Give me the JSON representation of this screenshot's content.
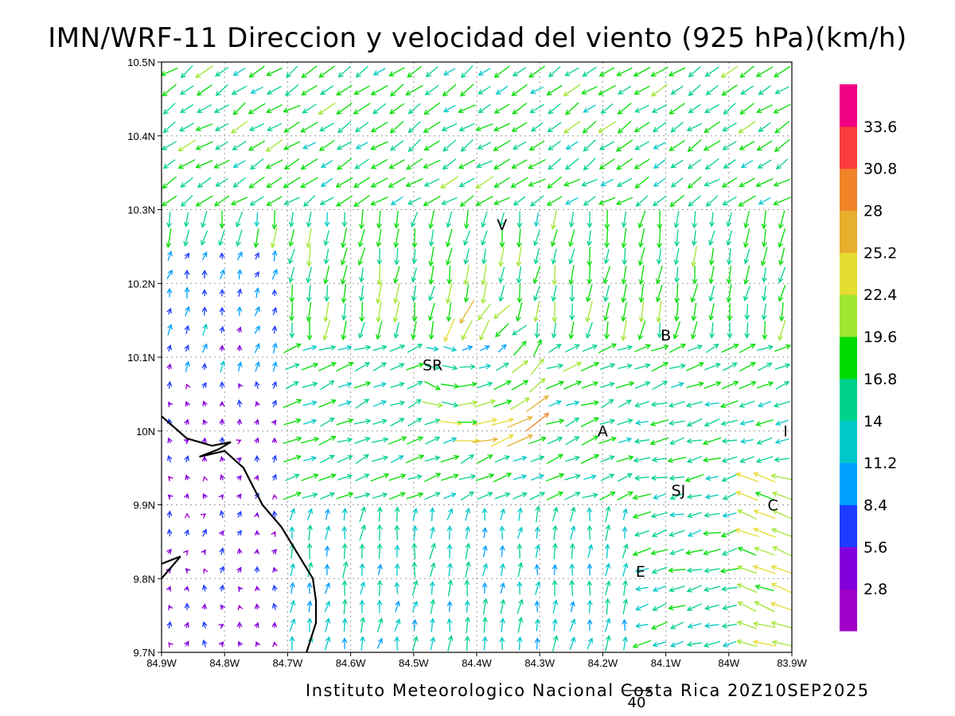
{
  "title": "IMN/WRF-11 Direccion y velocidad del viento (925 hPa)(km/h)",
  "footer": "Instituto Meteorologico Nacional Costa Rica 20Z10SEP2025",
  "map": {
    "lon_range": [
      -84.9,
      -83.9
    ],
    "lat_range": [
      9.7,
      10.5
    ],
    "x_ticks": [
      "84.9W",
      "84.8W",
      "84.7W",
      "84.6W",
      "84.5W",
      "84.4W",
      "84.3W",
      "84.2W",
      "84.1W",
      "84W",
      "83.9W"
    ],
    "y_ticks": [
      "9.7N",
      "9.8N",
      "9.9N",
      "10N",
      "10.1N",
      "10.2N",
      "10.3N",
      "10.4N",
      "10.5N"
    ],
    "grid": "dotted",
    "coastline": [
      [
        -84.9,
        10.02
      ],
      [
        -84.86,
        9.99
      ],
      [
        -84.82,
        9.98
      ],
      [
        -84.79,
        9.985
      ],
      [
        -84.81,
        9.975
      ],
      [
        -84.84,
        9.965
      ],
      [
        -84.8,
        9.973
      ],
      [
        -84.77,
        9.95
      ],
      [
        -84.74,
        9.9
      ],
      [
        -84.71,
        9.87
      ],
      [
        -84.66,
        9.8
      ],
      [
        -84.655,
        9.77
      ],
      [
        -84.655,
        9.74
      ],
      [
        -84.67,
        9.7
      ]
    ],
    "coastline2": [
      [
        -84.9,
        9.82
      ],
      [
        -84.87,
        9.83
      ],
      [
        -84.9,
        9.8
      ]
    ]
  },
  "cities": [
    {
      "label": "V",
      "lon": -84.36,
      "lat": 10.28
    },
    {
      "label": "SR",
      "lon": -84.47,
      "lat": 10.09
    },
    {
      "label": "B",
      "lon": -84.1,
      "lat": 10.13
    },
    {
      "label": "A",
      "lon": -84.2,
      "lat": 10.0
    },
    {
      "label": "I",
      "lon": -83.91,
      "lat": 10.0
    },
    {
      "label": "SJ",
      "lon": -84.08,
      "lat": 9.92
    },
    {
      "label": "C",
      "lon": -83.93,
      "lat": 9.9
    },
    {
      "label": "E",
      "lon": -84.14,
      "lat": 9.81
    }
  ],
  "colorbar": {
    "labels": [
      "2.8",
      "5.6",
      "8.4",
      "11.2",
      "14",
      "16.8",
      "19.6",
      "22.4",
      "25.2",
      "28",
      "30.8",
      "33.6"
    ],
    "colors": [
      "#a000c8",
      "#8200dc",
      "#1e3cff",
      "#00a0ff",
      "#00c8c8",
      "#00d28c",
      "#00dc00",
      "#a0e632",
      "#e6dc32",
      "#e6af2d",
      "#f08228",
      "#fa3c3c",
      "#f00082"
    ]
  },
  "reference_vector": {
    "label": "40"
  }
}
